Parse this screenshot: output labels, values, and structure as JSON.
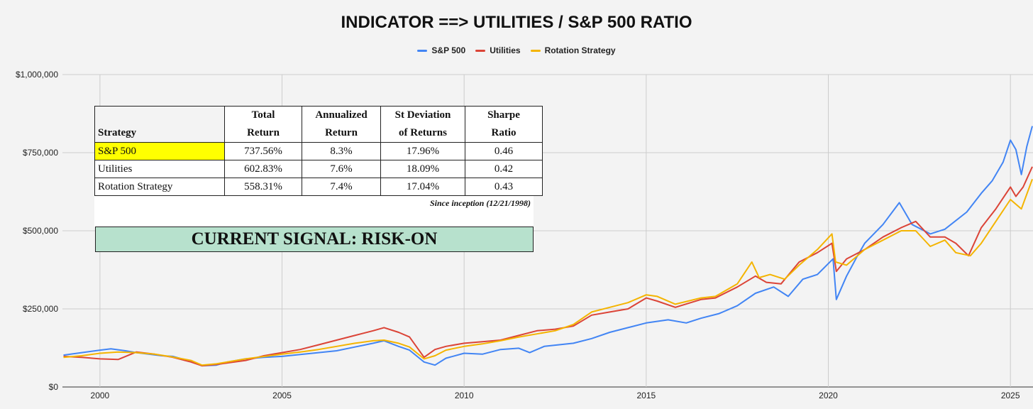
{
  "chart_data": {
    "type": "line",
    "title": "INDICATOR ==> UTILITIES / S&P 500 RATIO",
    "xlabel": "",
    "ylabel": "",
    "xlim": [
      1998.97,
      2025.62
    ],
    "ylim": [
      0,
      1000000
    ],
    "x_ticks": [
      2000,
      2005,
      2010,
      2015,
      2020,
      2025
    ],
    "y_ticks": [
      0,
      250000,
      500000,
      750000,
      1000000
    ],
    "y_tick_labels": [
      "$0",
      "$250,000",
      "$500,000",
      "$750,000",
      "$1,000,000"
    ],
    "grid": true,
    "legend_position": "top",
    "series": [
      {
        "name": "S&P 500",
        "color": "#4285f4",
        "x": [
          1999.0,
          1999.5,
          2000.0,
          2000.3,
          2000.7,
          2001.0,
          2001.7,
          2002.0,
          2002.5,
          2002.8,
          2003.2,
          2003.5,
          2004.0,
          2004.5,
          2005.0,
          2005.5,
          2006.0,
          2006.5,
          2007.0,
          2007.5,
          2007.8,
          2008.2,
          2008.5,
          2008.9,
          2009.2,
          2009.5,
          2010.0,
          2010.5,
          2011.0,
          2011.5,
          2011.8,
          2012.2,
          2013.0,
          2013.5,
          2014.0,
          2014.5,
          2015.0,
          2015.6,
          2016.1,
          2016.5,
          2017.0,
          2017.5,
          2018.0,
          2018.5,
          2018.9,
          2019.3,
          2019.7,
          2020.0,
          2020.13,
          2020.22,
          2020.5,
          2020.8,
          2021.0,
          2021.5,
          2021.95,
          2022.3,
          2022.8,
          2023.2,
          2023.8,
          2024.2,
          2024.5,
          2024.8,
          2025.0,
          2025.15,
          2025.3,
          2025.45,
          2025.6
        ],
        "values": [
          102000,
          110000,
          118000,
          122000,
          116000,
          110000,
          100000,
          98000,
          82000,
          68000,
          70000,
          80000,
          90000,
          95000,
          98000,
          104000,
          110000,
          116000,
          128000,
          140000,
          148000,
          130000,
          118000,
          80000,
          70000,
          92000,
          108000,
          105000,
          120000,
          124000,
          110000,
          130000,
          140000,
          155000,
          175000,
          190000,
          205000,
          215000,
          205000,
          220000,
          235000,
          260000,
          300000,
          320000,
          290000,
          345000,
          360000,
          395000,
          410000,
          280000,
          355000,
          420000,
          460000,
          520000,
          590000,
          520000,
          490000,
          505000,
          560000,
          620000,
          660000,
          720000,
          790000,
          760000,
          680000,
          770000,
          835000
        ]
      },
      {
        "name": "Utilities",
        "color": "#db4437",
        "x": [
          1999.0,
          1999.5,
          2000.0,
          2000.5,
          2001.0,
          2001.5,
          2002.0,
          2002.5,
          2002.8,
          2003.2,
          2004.0,
          2004.5,
          2005.0,
          2005.5,
          2006.0,
          2006.5,
          2007.0,
          2007.5,
          2007.8,
          2008.2,
          2008.5,
          2008.9,
          2009.2,
          2009.5,
          2010.0,
          2010.5,
          2011.0,
          2011.5,
          2012.0,
          2012.5,
          2013.0,
          2013.5,
          2014.0,
          2014.5,
          2015.0,
          2015.3,
          2015.8,
          2016.5,
          2016.9,
          2017.5,
          2018.0,
          2018.3,
          2018.7,
          2019.2,
          2019.7,
          2020.1,
          2020.22,
          2020.5,
          2021.0,
          2021.5,
          2022.0,
          2022.4,
          2022.8,
          2023.2,
          2023.5,
          2023.85,
          2024.2,
          2024.6,
          2025.0,
          2025.15,
          2025.35,
          2025.6
        ],
        "values": [
          98000,
          95000,
          90000,
          88000,
          112000,
          105000,
          95000,
          80000,
          68000,
          72000,
          85000,
          100000,
          110000,
          120000,
          135000,
          150000,
          165000,
          180000,
          190000,
          175000,
          160000,
          95000,
          120000,
          130000,
          140000,
          145000,
          150000,
          165000,
          180000,
          185000,
          195000,
          230000,
          240000,
          250000,
          285000,
          275000,
          255000,
          280000,
          285000,
          320000,
          355000,
          335000,
          330000,
          400000,
          430000,
          460000,
          370000,
          410000,
          440000,
          480000,
          510000,
          530000,
          480000,
          480000,
          460000,
          420000,
          510000,
          570000,
          640000,
          610000,
          640000,
          705000
        ]
      },
      {
        "name": "Rotation Strategy",
        "color": "#f4b400",
        "x": [
          1999.0,
          1999.5,
          2000.0,
          2000.5,
          2001.0,
          2001.5,
          2002.0,
          2002.5,
          2002.8,
          2003.2,
          2004.0,
          2005.0,
          2005.5,
          2006.0,
          2006.5,
          2007.0,
          2007.5,
          2007.8,
          2008.2,
          2008.5,
          2008.9,
          2009.2,
          2009.5,
          2010.0,
          2010.5,
          2011.0,
          2011.5,
          2012.0,
          2012.5,
          2013.0,
          2013.5,
          2014.0,
          2014.5,
          2015.0,
          2015.3,
          2015.8,
          2016.5,
          2016.9,
          2017.5,
          2017.9,
          2018.1,
          2018.4,
          2018.8,
          2019.2,
          2019.7,
          2020.1,
          2020.2,
          2020.5,
          2021.0,
          2021.5,
          2022.0,
          2022.4,
          2022.8,
          2023.2,
          2023.5,
          2023.9,
          2024.2,
          2024.6,
          2025.0,
          2025.3,
          2025.6
        ],
        "values": [
          95000,
          100000,
          108000,
          112000,
          110000,
          105000,
          96000,
          85000,
          70000,
          74000,
          90000,
          105000,
          112000,
          120000,
          130000,
          140000,
          148000,
          150000,
          140000,
          128000,
          90000,
          100000,
          118000,
          130000,
          138000,
          148000,
          160000,
          170000,
          180000,
          200000,
          240000,
          255000,
          270000,
          295000,
          290000,
          265000,
          285000,
          290000,
          330000,
          400000,
          350000,
          360000,
          345000,
          390000,
          440000,
          490000,
          400000,
          390000,
          440000,
          470000,
          500000,
          500000,
          450000,
          470000,
          430000,
          420000,
          460000,
          530000,
          600000,
          570000,
          665000
        ]
      }
    ]
  },
  "table": {
    "headers": [
      {
        "line1": "",
        "line2": "Strategy"
      },
      {
        "line1": "Total",
        "line2": "Return"
      },
      {
        "line1": "Annualized",
        "line2": "Return"
      },
      {
        "line1": "St Deviation",
        "line2": "of Returns"
      },
      {
        "line1": "Sharpe",
        "line2": "Ratio"
      }
    ],
    "rows": [
      [
        "S&P 500",
        "737.56%",
        "8.3%",
        "17.96%",
        "0.46"
      ],
      [
        "Utilities",
        "602.83%",
        "7.6%",
        "18.09%",
        "0.42"
      ],
      [
        "Rotation Strategy",
        "558.31%",
        "7.4%",
        "17.04%",
        "0.43"
      ]
    ],
    "highlight_color": "#ffff00",
    "note": "Since inception (12/21/1998)"
  },
  "signal": {
    "text": "CURRENT SIGNAL: RISK-ON",
    "color": "#b7e1cd"
  }
}
